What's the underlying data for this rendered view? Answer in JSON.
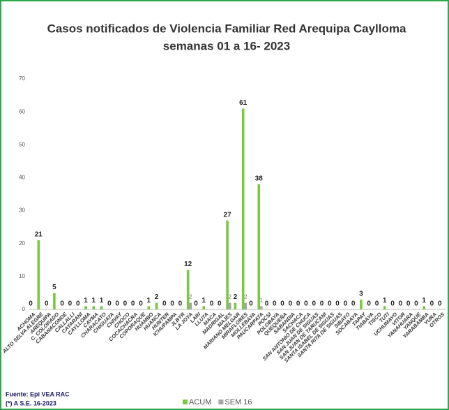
{
  "chart_data": {
    "type": "bar",
    "title": [
      "Casos notificados  de Violencia Familiar Red Arequipa Caylloma",
      "semanas 01 a 16- 2023"
    ],
    "categories": [
      "ACHOMA",
      "ALTO SELVA ALEGRE",
      "AREQUIPA",
      "C. COLORADO",
      "CABANACONDE",
      "CALLALLI",
      "CAYARANI",
      "CAYLLOMA",
      "CAYMA",
      "CHARACATO",
      "CHIGUATA",
      "CHIVAY",
      "CHOCO",
      "COCACHACRA",
      "COPORAQUE",
      "HUAMBO",
      "HUANCA",
      "HUNTER",
      "ICHUPAMPA",
      "JLBYR",
      "LA JOYA",
      "LARI",
      "LLUTA",
      "MACA",
      "MADRIGAL",
      "MAJES",
      "MARIANO MELGAR",
      "MIRAFLORES",
      "MOLLEBAYA",
      "PAUCARPATA",
      "POCSI",
      "POLOBAYA",
      "QUEQUEÑA",
      "SABANDIA",
      "SACHACA",
      "SAN ANTONIO DE CHUCA",
      "SAN JUAN DE SIGUAS",
      "SAN JUAN DE TARUCANI",
      "SANTA ISABEL DE SIGUAS",
      "SANTA RITA DE SIGUAS",
      "SIBAYO",
      "SOCABAYA",
      "TAPAY",
      "TIABAYA",
      "TISCO",
      "TUTI",
      "UCHUMAYO",
      "VITOR",
      "YANAHUARA",
      "YANQUE",
      "YARABAMBA",
      "YURA",
      "OTROS"
    ],
    "series": [
      {
        "name": "ACUM",
        "color": "#7ac943",
        "values": [
          0,
          21,
          0,
          5,
          0,
          0,
          0,
          1,
          1,
          1,
          0,
          0,
          0,
          0,
          0,
          1,
          2,
          0,
          0,
          0,
          12,
          0,
          1,
          0,
          0,
          27,
          2,
          61,
          0,
          38,
          0,
          0,
          0,
          0,
          0,
          0,
          0,
          0,
          0,
          0,
          0,
          0,
          3,
          0,
          0,
          1,
          0,
          0,
          0,
          0,
          1,
          0,
          0
        ]
      },
      {
        "name": "SEM 16",
        "color": "#a6a6a6",
        "values": [
          0,
          0,
          0,
          0,
          0,
          0,
          0,
          0,
          0,
          0,
          0,
          0,
          0,
          0,
          0,
          0,
          0,
          0,
          0,
          0,
          2,
          0,
          0,
          0,
          0,
          2,
          0,
          2,
          0,
          1,
          0,
          0,
          0,
          0,
          0,
          0,
          0,
          0,
          0,
          0,
          0,
          0,
          0,
          0,
          0,
          0,
          0,
          0,
          0,
          0,
          0,
          0,
          0
        ]
      }
    ],
    "ylim": [
      0,
      70
    ],
    "yticks": [
      0,
      10,
      20,
      30,
      40,
      50,
      60,
      70
    ],
    "grid": false,
    "notes": [
      "Fuente: Epi VEA RAC",
      "(*) A S.E. 16-2023"
    ]
  }
}
